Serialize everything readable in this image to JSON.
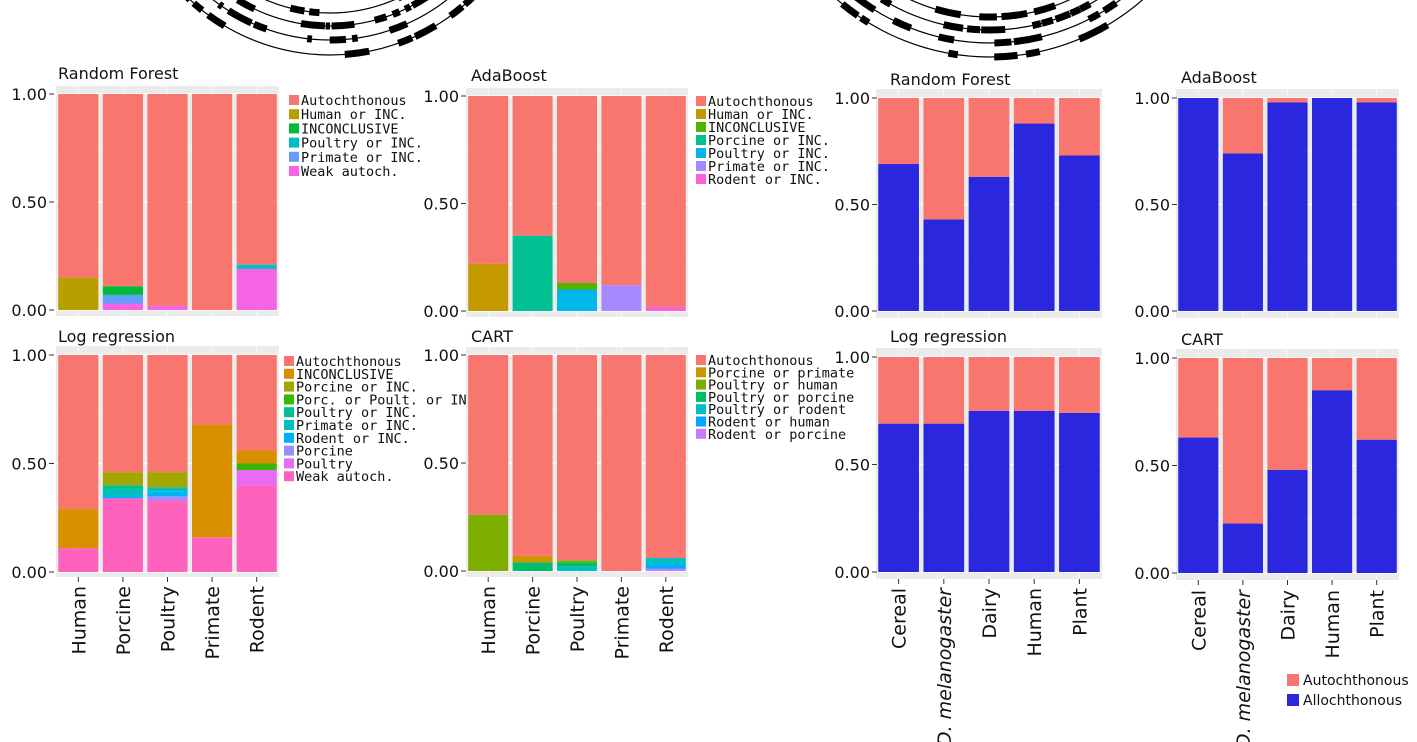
{
  "colors": {
    "panel_bg": "#ebebeb",
    "grid": "#ffffff",
    "autochthonous": "#f8766d",
    "allochthonous": "#2a27df",
    "ring_dark": "#000000"
  },
  "chart_data": [
    {
      "id": "left-random-forest",
      "type": "bar",
      "stacked": true,
      "title": "Random Forest",
      "categories": [
        "Human",
        "Porcine",
        "Poultry",
        "Primate",
        "Rodent"
      ],
      "ylim": [
        0,
        1
      ],
      "yticks": [
        "0.00",
        "0.50",
        "1.00"
      ],
      "legend": [
        "Autochthonous",
        "Human or INC.",
        "INCONCLUSIVE",
        "Poultry or INC.",
        "Primate or INC.",
        "Weak autoch."
      ],
      "series": [
        {
          "name": "Weak autoch.",
          "color": "#f564e3",
          "values": [
            0,
            0.03,
            0.02,
            0,
            0.19
          ]
        },
        {
          "name": "Primate or INC.",
          "color": "#619cff",
          "values": [
            0,
            0.04,
            0,
            0,
            0
          ]
        },
        {
          "name": "Poultry or INC.",
          "color": "#00bfc4",
          "values": [
            0,
            0,
            0,
            0,
            0.02
          ]
        },
        {
          "name": "INCONCLUSIVE",
          "color": "#00ba38",
          "values": [
            0,
            0.04,
            0,
            0,
            0
          ]
        },
        {
          "name": "Human or INC.",
          "color": "#b79f00",
          "values": [
            0.15,
            0,
            0,
            0,
            0
          ]
        },
        {
          "name": "Autochthonous",
          "color": "#f8766d",
          "values": [
            0.85,
            0.89,
            0.98,
            1.0,
            0.79
          ]
        }
      ]
    },
    {
      "id": "left-adaboost",
      "type": "bar",
      "stacked": true,
      "title": "AdaBoost",
      "categories": [
        "Human",
        "Porcine",
        "Poultry",
        "Primate",
        "Rodent"
      ],
      "ylim": [
        0,
        1
      ],
      "yticks": [
        "0.00",
        "0.50",
        "1.00"
      ],
      "legend": [
        "Autochthonous",
        "Human or INC.",
        "INCONCLUSIVE",
        "Porcine or INC.",
        "Poultry or INC.",
        "Primate or INC.",
        "Rodent or INC."
      ],
      "series": [
        {
          "name": "Rodent or INC.",
          "color": "#fb61d7",
          "values": [
            0,
            0,
            0,
            0,
            0.02
          ]
        },
        {
          "name": "Primate or INC.",
          "color": "#a58aff",
          "values": [
            0,
            0,
            0,
            0.12,
            0
          ]
        },
        {
          "name": "Poultry or INC.",
          "color": "#00b6eb",
          "values": [
            0,
            0,
            0.1,
            0,
            0
          ]
        },
        {
          "name": "Porcine or INC.",
          "color": "#00c094",
          "values": [
            0,
            0.35,
            0,
            0,
            0
          ]
        },
        {
          "name": "INCONCLUSIVE",
          "color": "#53b400",
          "values": [
            0,
            0,
            0.03,
            0,
            0
          ]
        },
        {
          "name": "Human or INC.",
          "color": "#c49a00",
          "values": [
            0.22,
            0,
            0,
            0,
            0
          ]
        },
        {
          "name": "Autochthonous",
          "color": "#f8766d",
          "values": [
            0.78,
            0.65,
            0.87,
            0.88,
            0.98
          ]
        }
      ]
    },
    {
      "id": "left-log-regression",
      "type": "bar",
      "stacked": true,
      "title": "Log regression",
      "categories": [
        "Human",
        "Porcine",
        "Poultry",
        "Primate",
        "Rodent"
      ],
      "ylim": [
        0,
        1
      ],
      "yticks": [
        "0.00",
        "0.50",
        "1.00"
      ],
      "legend": [
        "Autochthonous",
        "INCONCLUSIVE",
        "Porcine or INC.",
        "Porc. or Poult. or INC.",
        "Poultry or INC.",
        "Primate or INC.",
        "Rodent or INC.",
        "Porcine",
        "Poultry",
        "Weak autoch."
      ],
      "series": [
        {
          "name": "Weak autoch.",
          "color": "#ff62bc",
          "values": [
            0.11,
            0.34,
            0.33,
            0.16,
            0.4
          ]
        },
        {
          "name": "Poultry",
          "color": "#e76bf3",
          "values": [
            0,
            0,
            0,
            0,
            0.07
          ]
        },
        {
          "name": "Porcine",
          "color": "#9590ff",
          "values": [
            0,
            0,
            0.02,
            0,
            0
          ]
        },
        {
          "name": "Rodent or INC.",
          "color": "#00b0f6",
          "values": [
            0,
            0.01,
            0.02,
            0,
            0
          ]
        },
        {
          "name": "Primate or INC.",
          "color": "#00bfc4",
          "values": [
            0,
            0.03,
            0.02,
            0,
            0
          ]
        },
        {
          "name": "Poultry or INC.",
          "color": "#00c08b",
          "values": [
            0,
            0.02,
            0,
            0,
            0
          ]
        },
        {
          "name": "Porc. or Poult. or INC.",
          "color": "#39b600",
          "values": [
            0,
            0,
            0,
            0,
            0.03
          ]
        },
        {
          "name": "Porcine or INC.",
          "color": "#a3a500",
          "values": [
            0,
            0.06,
            0.07,
            0,
            0
          ]
        },
        {
          "name": "INCONCLUSIVE",
          "color": "#d89000",
          "values": [
            0.18,
            0,
            0,
            0.52,
            0.06
          ]
        },
        {
          "name": "Autochthonous",
          "color": "#f8766d",
          "values": [
            0.71,
            0.54,
            0.54,
            0.32,
            0.44
          ]
        }
      ]
    },
    {
      "id": "left-cart",
      "type": "bar",
      "stacked": true,
      "title": "CART",
      "categories": [
        "Human",
        "Porcine",
        "Poultry",
        "Primate",
        "Rodent"
      ],
      "ylim": [
        0,
        1
      ],
      "yticks": [
        "0.00",
        "0.50",
        "1.00"
      ],
      "legend": [
        "Autochthonous",
        "Porcine or primate",
        "Poultry or human",
        "Poultry or porcine",
        "Poultry or rodent",
        "Rodent or human",
        "Rodent or porcine"
      ],
      "series": [
        {
          "name": "Rodent or porcine",
          "color": "#c77cff",
          "values": [
            0,
            0,
            0,
            0,
            0.01
          ]
        },
        {
          "name": "Rodent or human",
          "color": "#00a9ff",
          "values": [
            0,
            0,
            0,
            0,
            0.02
          ]
        },
        {
          "name": "Poultry or rodent",
          "color": "#00bfc4",
          "values": [
            0,
            0,
            0.02,
            0,
            0.03
          ]
        },
        {
          "name": "Poultry or porcine",
          "color": "#00be67",
          "values": [
            0,
            0.04,
            0.02,
            0,
            0
          ]
        },
        {
          "name": "Poultry or human",
          "color": "#7cae00",
          "values": [
            0.26,
            0,
            0.01,
            0,
            0
          ]
        },
        {
          "name": "Porcine or primate",
          "color": "#cd9600",
          "values": [
            0,
            0.03,
            0,
            0,
            0
          ]
        },
        {
          "name": "Autochthonous",
          "color": "#f8766d",
          "values": [
            0.74,
            0.93,
            0.95,
            1.0,
            0.94
          ]
        }
      ]
    },
    {
      "id": "right-random-forest",
      "type": "bar",
      "stacked": true,
      "title": "Random Forest",
      "categories": [
        "Cereal",
        "D. melanogaster",
        "Dairy",
        "Human",
        "Plant"
      ],
      "ylim": [
        0,
        1
      ],
      "yticks": [
        "0.00",
        "0.50",
        "1.00"
      ],
      "series": [
        {
          "name": "Allochthonous",
          "color": "#2a27df",
          "values": [
            0.69,
            0.43,
            0.63,
            0.88,
            0.73
          ]
        },
        {
          "name": "Autochthonous",
          "color": "#f8766d",
          "values": [
            0.31,
            0.57,
            0.37,
            0.12,
            0.27
          ]
        }
      ]
    },
    {
      "id": "right-adaboost",
      "type": "bar",
      "stacked": true,
      "title": "AdaBoost",
      "categories": [
        "Cereal",
        "D. melanogaster",
        "Dairy",
        "Human",
        "Plant"
      ],
      "ylim": [
        0,
        1
      ],
      "yticks": [
        "0.00",
        "0.50",
        "1.00"
      ],
      "series": [
        {
          "name": "Allochthonous",
          "color": "#2a27df",
          "values": [
            1.0,
            0.74,
            0.98,
            1.0,
            0.98
          ]
        },
        {
          "name": "Autochthonous",
          "color": "#f8766d",
          "values": [
            0,
            0.26,
            0.02,
            0,
            0.02
          ]
        }
      ]
    },
    {
      "id": "right-log-regression",
      "type": "bar",
      "stacked": true,
      "title": "Log regression",
      "categories": [
        "Cereal",
        "D. melanogaster",
        "Dairy",
        "Human",
        "Plant"
      ],
      "ylim": [
        0,
        1
      ],
      "yticks": [
        "0.00",
        "0.50",
        "1.00"
      ],
      "series": [
        {
          "name": "Allochthonous",
          "color": "#2a27df",
          "values": [
            0.69,
            0.69,
            0.75,
            0.75,
            0.74
          ]
        },
        {
          "name": "Autochthonous",
          "color": "#f8766d",
          "values": [
            0.31,
            0.31,
            0.25,
            0.25,
            0.26
          ]
        }
      ]
    },
    {
      "id": "right-cart",
      "type": "bar",
      "stacked": true,
      "title": "CART",
      "categories": [
        "Cereal",
        "D. melanogaster",
        "Dairy",
        "Human",
        "Plant"
      ],
      "ylim": [
        0,
        1
      ],
      "yticks": [
        "0.00",
        "0.50",
        "1.00"
      ],
      "series": [
        {
          "name": "Allochthonous",
          "color": "#2a27df",
          "values": [
            0.63,
            0.23,
            0.48,
            0.85,
            0.62
          ]
        },
        {
          "name": "Autochthonous",
          "color": "#f8766d",
          "values": [
            0.37,
            0.77,
            0.52,
            0.15,
            0.38
          ]
        }
      ]
    }
  ],
  "right_legend": [
    {
      "label": "Autochthonous",
      "color": "#f8766d"
    },
    {
      "label": "Allochthonous",
      "color": "#2a27df"
    }
  ]
}
